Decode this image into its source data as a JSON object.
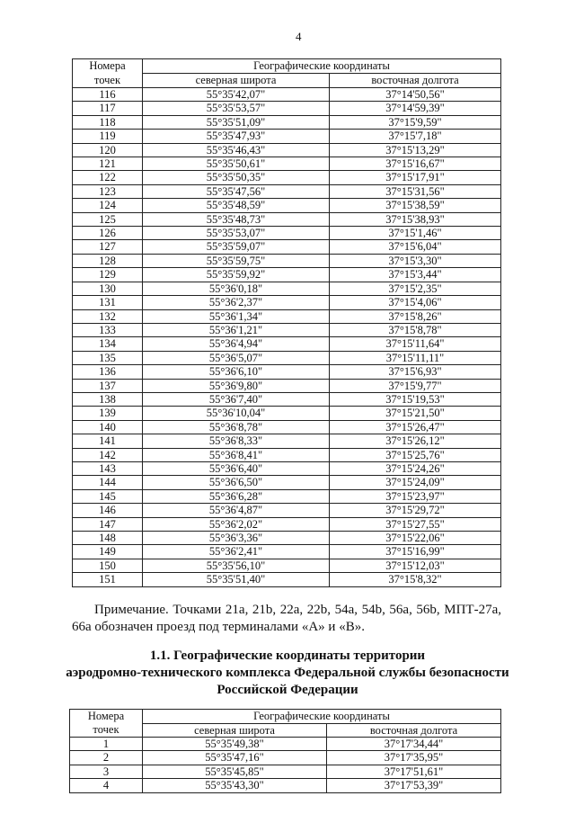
{
  "page_number": "4",
  "table1": {
    "header": {
      "num": "Номера точек",
      "group": "Географические координаты",
      "lat": "северная широта",
      "lon": "восточная долгота"
    },
    "rows": [
      [
        "116",
        "55°35'42,07\"",
        "37°14'50,56\""
      ],
      [
        "117",
        "55°35'53,57\"",
        "37°14'59,39\""
      ],
      [
        "118",
        "55°35'51,09\"",
        "37°15'9,59\""
      ],
      [
        "119",
        "55°35'47,93\"",
        "37°15'7,18\""
      ],
      [
        "120",
        "55°35'46,43\"",
        "37°15'13,29\""
      ],
      [
        "121",
        "55°35'50,61\"",
        "37°15'16,67\""
      ],
      [
        "122",
        "55°35'50,35\"",
        "37°15'17,91\""
      ],
      [
        "123",
        "55°35'47,56\"",
        "37°15'31,56\""
      ],
      [
        "124",
        "55°35'48,59\"",
        "37°15'38,59\""
      ],
      [
        "125",
        "55°35'48,73\"",
        "37°15'38,93\""
      ],
      [
        "126",
        "55°35'53,07\"",
        "37°15'1,46\""
      ],
      [
        "127",
        "55°35'59,07\"",
        "37°15'6,04\""
      ],
      [
        "128",
        "55°35'59,75\"",
        "37°15'3,30\""
      ],
      [
        "129",
        "55°35'59,92\"",
        "37°15'3,44\""
      ],
      [
        "130",
        "55°36'0,18\"",
        "37°15'2,35\""
      ],
      [
        "131",
        "55°36'2,37\"",
        "37°15'4,06\""
      ],
      [
        "132",
        "55°36'1,34\"",
        "37°15'8,26\""
      ],
      [
        "133",
        "55°36'1,21\"",
        "37°15'8,78\""
      ],
      [
        "134",
        "55°36'4,94\"",
        "37°15'11,64\""
      ],
      [
        "135",
        "55°36'5,07\"",
        "37°15'11,11\""
      ],
      [
        "136",
        "55°36'6,10\"",
        "37°15'6,93\""
      ],
      [
        "137",
        "55°36'9,80\"",
        "37°15'9,77\""
      ],
      [
        "138",
        "55°36'7,40\"",
        "37°15'19,53\""
      ],
      [
        "139",
        "55°36'10,04\"",
        "37°15'21,50\""
      ],
      [
        "140",
        "55°36'8,78\"",
        "37°15'26,47\""
      ],
      [
        "141",
        "55°36'8,33\"",
        "37°15'26,12\""
      ],
      [
        "142",
        "55°36'8,41\"",
        "37°15'25,76\""
      ],
      [
        "143",
        "55°36'6,40\"",
        "37°15'24,26\""
      ],
      [
        "144",
        "55°36'6,50\"",
        "37°15'24,09\""
      ],
      [
        "145",
        "55°36'6,28\"",
        "37°15'23,97\""
      ],
      [
        "146",
        "55°36'4,87\"",
        "37°15'29,72\""
      ],
      [
        "147",
        "55°36'2,02\"",
        "37°15'27,55\""
      ],
      [
        "148",
        "55°36'3,36\"",
        "37°15'22,06\""
      ],
      [
        "149",
        "55°36'2,41\"",
        "37°15'16,99\""
      ],
      [
        "150",
        "55°35'56,10\"",
        "37°15'12,03\""
      ],
      [
        "151",
        "55°35'51,40\"",
        "37°15'8,32\""
      ]
    ]
  },
  "note": "Примечание. Точками 21a, 21b, 22a, 22b, 54a, 54b, 56a, 56b, МПТ-27a, 66a обозначен проезд под терминалами «A» и «B».",
  "section_heading": {
    "line1": "1.1. Географические координаты территории",
    "line2": "аэродромно-технического комплекса Федеральной службы безопасности",
    "line3": "Российской Федерации"
  },
  "table2": {
    "header": {
      "num": "Номера точек",
      "group": "Географические координаты",
      "lat": "северная широта",
      "lon": "восточная долгота"
    },
    "rows": [
      [
        "1",
        "55°35'49,38\"",
        "37°17'34,44\""
      ],
      [
        "2",
        "55°35'47,16\"",
        "37°17'35,95\""
      ],
      [
        "3",
        "55°35'45,85\"",
        "37°17'51,61\""
      ],
      [
        "4",
        "55°35'43,30\"",
        "37°17'53,39\""
      ]
    ]
  }
}
